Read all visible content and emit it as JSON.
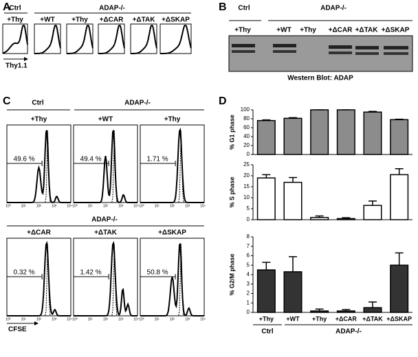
{
  "panel_a": {
    "letter": "A",
    "group_ctrl": "Ctrl",
    "group_ko": "ADAP-/-",
    "samples": [
      "+Thy",
      "+WT",
      "+Thy",
      "+ΔCAR",
      "+ΔTAK",
      "+ΔSKAP"
    ],
    "axis_label": "Thy1.1"
  },
  "panel_b": {
    "letter": "B",
    "group_ctrl": "Ctrl",
    "group_ko": "ADAP-/-",
    "lanes": [
      "+Thy",
      "+WT",
      "+Thy",
      "+ΔCAR",
      "+ΔTAK",
      "+ΔSKAP"
    ],
    "caption": "Western Blot: ADAP"
  },
  "panel_c": {
    "letter": "C",
    "top_ctrl": "Ctrl",
    "top_ko": "ADAP-/-",
    "top_samples": [
      "+Thy",
      "+WT",
      "+Thy"
    ],
    "top_percents": [
      "49.6 %",
      "49.4 %",
      "1.71 %"
    ],
    "bottom_ko": "ADAP-/-",
    "bottom_samples": [
      "+ΔCAR",
      "+ΔTAK",
      "+ΔSKAP"
    ],
    "bottom_percents": [
      "0.32 %",
      "1.42 %",
      "50.8 %"
    ],
    "log_ticks": [
      "10⁰",
      "10¹",
      "10²",
      "10³",
      "10⁴"
    ],
    "axis_label": "CFSE"
  },
  "panel_d": {
    "letter": "D",
    "group_ctrl": "Ctrl",
    "group_ko": "ADAP-/-",
    "categories": [
      "+Thy",
      "+WT",
      "+Thy",
      "+ΔCAR",
      "+ΔTAK",
      "+ΔSKAP"
    ],
    "chart_data": [
      {
        "type": "bar",
        "y_label": "% G1 phase",
        "color": "#8c8c8c",
        "values": [
          76,
          81,
          100,
          100,
          95,
          78
        ],
        "errors": [
          1.5,
          1.5,
          0,
          0,
          1.5,
          1
        ],
        "ylim": [
          0,
          100
        ],
        "yticks": [
          0,
          20,
          40,
          60,
          80,
          100
        ]
      },
      {
        "type": "bar",
        "y_label": "% S phase",
        "color": "#ffffff",
        "values": [
          19,
          17,
          1,
          0.5,
          6.5,
          20.5
        ],
        "errors": [
          1.5,
          2.2,
          0.7,
          0.4,
          2,
          2.7
        ],
        "ylim": [
          0,
          25
        ],
        "yticks": [
          0,
          5,
          10,
          15,
          20,
          25
        ]
      },
      {
        "type": "bar",
        "y_label": "% G2/M phase",
        "color": "#333333",
        "values": [
          4.5,
          4.3,
          0.15,
          0.15,
          0.5,
          5
        ],
        "errors": [
          0.8,
          1.6,
          0.2,
          0.15,
          0.6,
          1.3
        ],
        "ylim": [
          0,
          8
        ],
        "yticks": [
          0,
          1,
          2,
          3,
          4,
          5,
          6,
          7,
          8
        ]
      }
    ]
  }
}
